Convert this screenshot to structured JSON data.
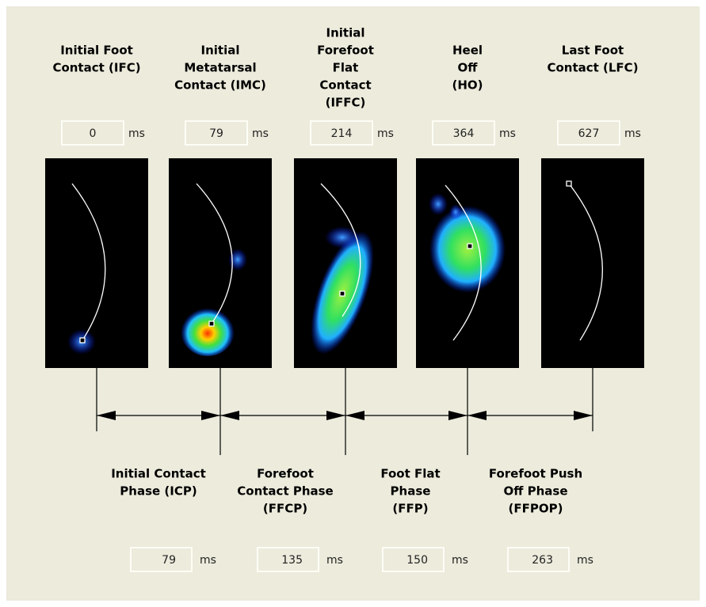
{
  "unit": "ms",
  "events": [
    {
      "label_lines": [
        "Initial Foot",
        "Contact (IFC)"
      ],
      "value": 0
    },
    {
      "label_lines": [
        "Initial",
        "Metatarsal",
        "Contact (IMC)"
      ],
      "value": 79
    },
    {
      "label_lines": [
        "Initial",
        "Forefoot",
        "Flat",
        "Contact",
        "(IFFC)"
      ],
      "value": 214
    },
    {
      "label_lines": [
        "Heel",
        "Off",
        "(HO)"
      ],
      "value": 364
    },
    {
      "label_lines": [
        "Last Foot",
        "Contact (LFC)"
      ],
      "value": 627
    }
  ],
  "phases": [
    {
      "label_lines": [
        "Initial Contact",
        "Phase (ICP)"
      ],
      "value": 79
    },
    {
      "label_lines": [
        "Forefoot",
        "Contact Phase",
        "(FFCP)"
      ],
      "value": 135
    },
    {
      "label_lines": [
        "Foot Flat",
        "Phase",
        "(FFP)"
      ],
      "value": 150
    },
    {
      "label_lines": [
        "Forefoot Push",
        "Off Phase",
        "(FFPOP)"
      ],
      "value": 263
    }
  ]
}
